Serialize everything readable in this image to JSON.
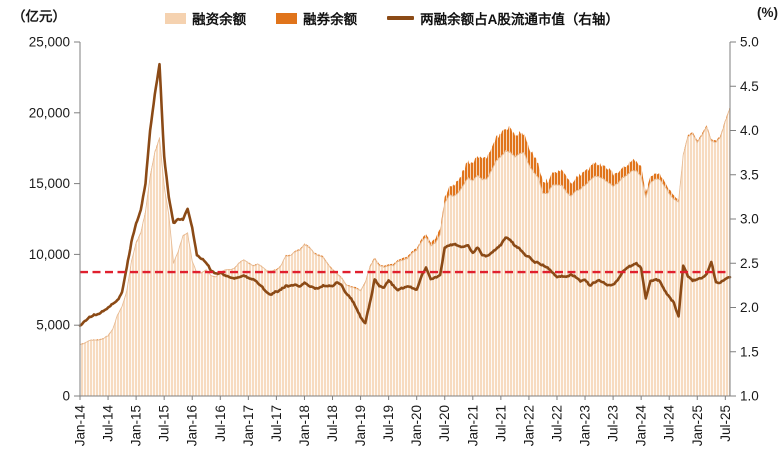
{
  "header": {
    "left_unit": "（亿元）",
    "right_unit": "(%)"
  },
  "legend": [
    {
      "label": "融资余额",
      "swatch": "area",
      "color": "#F5D2B0"
    },
    {
      "label": "融券余额",
      "swatch": "area",
      "color": "#E0741B"
    },
    {
      "label": "两融余额占A股流通市值（右轴）",
      "swatch": "line",
      "color": "#8B4A16"
    }
  ],
  "chart_data": {
    "type": "area",
    "subtype": "stacked-areas-with-line",
    "frequency": "monthly",
    "x_start": "Jan-14",
    "x_end": "Aug-25",
    "n_points": 140,
    "x_tick_labels": [
      "Jan-14",
      "Jul-14",
      "Jan-15",
      "Jul-15",
      "Jan-16",
      "Jul-16",
      "Jan-17",
      "Jul-17",
      "Jan-18",
      "Jul-18",
      "Jan-19",
      "Jul-19",
      "Jan-20",
      "Jul-20",
      "Jan-21",
      "Jul-21",
      "Jan-22",
      "Jul-22",
      "Jan-23",
      "Jul-23",
      "Jan-24",
      "Jul-24",
      "Jan-25",
      "Jul-25"
    ],
    "x_tick_month_step": 6,
    "left_axis": {
      "title": "（亿元）",
      "range": [
        0,
        25000
      ],
      "tick_labels": [
        "0",
        "5,000",
        "10,000",
        "15,000",
        "20,000",
        "25,000"
      ]
    },
    "right_axis": {
      "title": "(%)",
      "range": [
        1.0,
        5.0
      ],
      "tick_labels": [
        "1.0",
        "1.5",
        "2.0",
        "2.5",
        "3.0",
        "3.5",
        "4.0",
        "4.5",
        "5.0"
      ]
    },
    "grid": "off",
    "legend_position": "top-center",
    "series": [
      {
        "name": "融资余额",
        "type": "area-stacked",
        "axis": "left",
        "color": "#F7DBC0",
        "edge_color": "#E8BE98",
        "values": [
          3600,
          3750,
          3900,
          3950,
          3950,
          4050,
          4250,
          4700,
          5700,
          6300,
          7400,
          9500,
          10800,
          11500,
          13000,
          15500,
          17200,
          18200,
          14800,
          12800,
          9400,
          10200,
          11300,
          11500,
          9500,
          8700,
          8700,
          8900,
          8500,
          8400,
          8700,
          8900,
          8900,
          9000,
          9400,
          9600,
          9400,
          9200,
          9300,
          9100,
          8800,
          8800,
          8900,
          9200,
          9900,
          9900,
          10200,
          10300,
          10700,
          10500,
          10100,
          9900,
          9800,
          9300,
          8900,
          8600,
          8300,
          7800,
          7700,
          7600,
          7400,
          8000,
          9100,
          9700,
          9200,
          9100,
          9200,
          9200,
          9500,
          9600,
          9700,
          10100,
          10300,
          10900,
          11200,
          10600,
          10800,
          11400,
          13600,
          14200,
          14100,
          14400,
          14900,
          15400,
          15200,
          15600,
          15300,
          15300,
          15900,
          16600,
          16900,
          17300,
          17200,
          16900,
          17100,
          17200,
          16300,
          15800,
          15400,
          14300,
          14300,
          14900,
          14900,
          14900,
          14400,
          14100,
          14500,
          14600,
          14900,
          15200,
          15500,
          15500,
          15300,
          15100,
          14800,
          15000,
          15400,
          15600,
          15900,
          15900,
          15500,
          14000,
          15100,
          15300,
          15300,
          14800,
          14300,
          13900,
          13700,
          17000,
          18300,
          18500,
          17900,
          18400,
          19000,
          18000,
          17900,
          18300,
          19400,
          20300
        ]
      },
      {
        "name": "融券余额",
        "type": "area-stacked",
        "axis": "left",
        "color": "#E0741B",
        "values": [
          30,
          32,
          35,
          38,
          40,
          42,
          45,
          48,
          55,
          60,
          70,
          85,
          90,
          95,
          100,
          95,
          90,
          85,
          60,
          40,
          30,
          30,
          35,
          40,
          35,
          32,
          30,
          30,
          28,
          28,
          30,
          32,
          35,
          38,
          40,
          45,
          45,
          45,
          48,
          50,
          50,
          52,
          55,
          58,
          60,
          60,
          62,
          65,
          68,
          70,
          72,
          75,
          78,
          80,
          82,
          80,
          78,
          75,
          78,
          80,
          80,
          85,
          90,
          95,
          95,
          100,
          110,
          120,
          130,
          135,
          140,
          140,
          150,
          180,
          220,
          260,
          320,
          380,
          450,
          620,
          750,
          900,
          1000,
          1200,
          1150,
          1300,
          1400,
          1450,
          1550,
          1600,
          1650,
          1700,
          1720,
          1500,
          1450,
          1200,
          1250,
          1150,
          1050,
          950,
          900,
          950,
          950,
          1000,
          950,
          900,
          950,
          950,
          950,
          960,
          950,
          940,
          930,
          920,
          900,
          850,
          800,
          750,
          720,
          700,
          650,
          420,
          400,
          380,
          350,
          320,
          300,
          250,
          150,
          150,
          140,
          130,
          130,
          135,
          140,
          130,
          125,
          125,
          130,
          135
        ]
      },
      {
        "name": "两融余额占A股流通市值（右轴）",
        "type": "line",
        "axis": "right",
        "color": "#8B4A16",
        "values": [
          1.8,
          1.84,
          1.89,
          1.92,
          1.92,
          1.96,
          2.0,
          2.04,
          2.08,
          2.18,
          2.45,
          2.75,
          2.95,
          3.1,
          3.4,
          4.0,
          4.4,
          4.75,
          3.7,
          3.25,
          2.95,
          3.0,
          3.0,
          3.12,
          2.9,
          2.6,
          2.55,
          2.5,
          2.42,
          2.38,
          2.39,
          2.36,
          2.34,
          2.33,
          2.34,
          2.36,
          2.33,
          2.32,
          2.28,
          2.24,
          2.16,
          2.15,
          2.18,
          2.2,
          2.25,
          2.24,
          2.26,
          2.24,
          2.28,
          2.24,
          2.22,
          2.22,
          2.25,
          2.25,
          2.25,
          2.28,
          2.25,
          2.15,
          2.1,
          2.0,
          1.89,
          1.82,
          2.05,
          2.32,
          2.24,
          2.22,
          2.31,
          2.25,
          2.2,
          2.22,
          2.25,
          2.22,
          2.2,
          2.35,
          2.45,
          2.33,
          2.34,
          2.36,
          2.68,
          2.7,
          2.72,
          2.7,
          2.68,
          2.7,
          2.62,
          2.68,
          2.6,
          2.58,
          2.62,
          2.66,
          2.7,
          2.8,
          2.77,
          2.7,
          2.66,
          2.6,
          2.57,
          2.52,
          2.5,
          2.48,
          2.45,
          2.4,
          2.34,
          2.35,
          2.35,
          2.38,
          2.35,
          2.3,
          2.31,
          2.25,
          2.28,
          2.3,
          2.28,
          2.25,
          2.26,
          2.3,
          2.4,
          2.45,
          2.48,
          2.5,
          2.45,
          2.1,
          2.3,
          2.32,
          2.3,
          2.2,
          2.12,
          2.05,
          1.9,
          2.48,
          2.35,
          2.3,
          2.31,
          2.33,
          2.38,
          2.52,
          2.28,
          2.28,
          2.32,
          2.35
        ]
      }
    ],
    "reference_line": {
      "value": 2.4,
      "axis": "right",
      "style": "dashed",
      "color": "#E0202E"
    },
    "colors": {
      "axis": "#7F7F7F",
      "text": "#1A1A1A",
      "background": "#FFFFFF"
    }
  }
}
